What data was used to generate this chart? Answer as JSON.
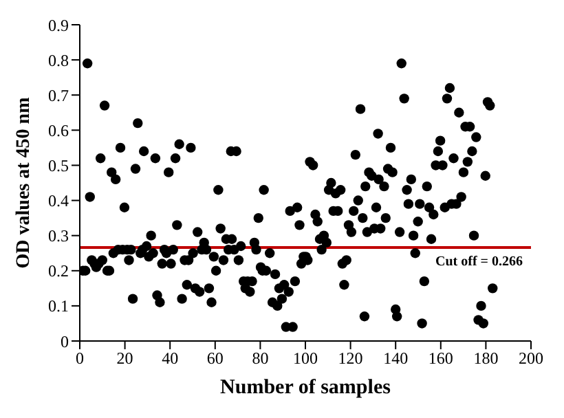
{
  "chart_data": {
    "type": "scatter",
    "xlabel": "Number of samples",
    "ylabel": "OD values at 450 nm",
    "xlim": [
      0,
      200
    ],
    "xticks": [
      0,
      20,
      40,
      60,
      80,
      100,
      120,
      140,
      160,
      180,
      200
    ],
    "ylim": [
      0,
      0.9
    ],
    "yticks": [
      0,
      0.1,
      0.2,
      0.3,
      0.4,
      0.5,
      0.6,
      0.7,
      0.8,
      0.9
    ],
    "marker": "circle",
    "ref_lines": [
      {
        "axis": "y",
        "value": 0.266,
        "label": "Cut off = 0.266",
        "color": "#c00000"
      }
    ],
    "series": [
      {
        "color": "#000000",
        "x": [
          1.4,
          2.5,
          3.4,
          4.5,
          5.3,
          6.5,
          7.3,
          8.4,
          9.2,
          10,
          11,
          12.2,
          13.1,
          14.1,
          14.9,
          15.9,
          17,
          18,
          19,
          19.8,
          21,
          21.8,
          22.7,
          23.5,
          24.7,
          25.7,
          26.9,
          27.8,
          28.4,
          29.6,
          30.6,
          31.6,
          32.5,
          33.5,
          34.3,
          35.5,
          36.5,
          37.5,
          38.4,
          39.4,
          40.4,
          41.4,
          42.4,
          43.1,
          44.1,
          45.3,
          46.5,
          47.5,
          48.2,
          49.2,
          50.2,
          51.2,
          52.2,
          53.1,
          54.1,
          55.1,
          56.1,
          57.3,
          58.4,
          59.4,
          60.4,
          61.4,
          62.4,
          63.7,
          64.9,
          65.9,
          67,
          67.4,
          68.4,
          69.4,
          70.4,
          71.4,
          72.6,
          73.4,
          74.4,
          75.4,
          76.4,
          77.4,
          78.2,
          79.2,
          80.2,
          81,
          81.6,
          82.6,
          84.2,
          85.4,
          86.6,
          87.6,
          88.4,
          89.6,
          90.6,
          91.4,
          92.6,
          93.2,
          94.4,
          95.4,
          96.4,
          97.4,
          98.2,
          99.2,
          100.2,
          101,
          102,
          103.4,
          104.4,
          105.4,
          106.4,
          107.2,
          108.2,
          109.4,
          110.4,
          111.4,
          112.4,
          113.4,
          114.4,
          115.6,
          116.4,
          117.2,
          118.2,
          119.2,
          120.4,
          121.4,
          122.2,
          123.4,
          124.4,
          125.4,
          126.2,
          126.6,
          127.4,
          128.2,
          129.4,
          130.6,
          131.4,
          132.2,
          132.5,
          133.3,
          134.9,
          135.6,
          136.6,
          137.8,
          138.6,
          140,
          140.6,
          141.8,
          142.6,
          143.8,
          145,
          145.7,
          146.9,
          147.9,
          148.7,
          149.9,
          150.7,
          151.7,
          152.7,
          153.9,
          154.9,
          155.8,
          156.8,
          157.8,
          158.8,
          159.8,
          160.8,
          161.8,
          162.8,
          164,
          164.8,
          165.7,
          166.9,
          168.1,
          169.1,
          170.1,
          170.9,
          171.9,
          172.9,
          173.9,
          174.7,
          175.7,
          176.7,
          177.9,
          178.9,
          179.8,
          180.8,
          181.8,
          183
        ],
        "values": [
          0.2,
          0.2,
          0.79,
          0.41,
          0.23,
          0.22,
          0.21,
          0.22,
          0.52,
          0.23,
          0.67,
          0.2,
          0.2,
          0.48,
          0.25,
          0.46,
          0.26,
          0.55,
          0.26,
          0.38,
          0.26,
          0.23,
          0.26,
          0.12,
          0.49,
          0.62,
          0.25,
          0.26,
          0.54,
          0.27,
          0.24,
          0.3,
          0.25,
          0.52,
          0.13,
          0.11,
          0.22,
          0.26,
          0.25,
          0.48,
          0.22,
          0.26,
          0.52,
          0.33,
          0.56,
          0.12,
          0.23,
          0.16,
          0.23,
          0.55,
          0.25,
          0.15,
          0.31,
          0.14,
          0.26,
          0.28,
          0.26,
          0.15,
          0.11,
          0.24,
          0.2,
          0.43,
          0.32,
          0.23,
          0.29,
          0.26,
          0.54,
          0.29,
          0.26,
          0.54,
          0.23,
          0.27,
          0.17,
          0.15,
          0.17,
          0.14,
          0.17,
          0.28,
          0.26,
          0.35,
          0.21,
          0.2,
          0.43,
          0.2,
          0.25,
          0.11,
          0.19,
          0.1,
          0.15,
          0.12,
          0.16,
          0.04,
          0.14,
          0.37,
          0.04,
          0.17,
          0.38,
          0.33,
          0.22,
          0.24,
          0.24,
          0.23,
          0.51,
          0.5,
          0.36,
          0.34,
          0.29,
          0.26,
          0.3,
          0.28,
          0.43,
          0.45,
          0.37,
          0.42,
          0.37,
          0.43,
          0.22,
          0.16,
          0.23,
          0.33,
          0.31,
          0.37,
          0.53,
          0.4,
          0.66,
          0.35,
          0.07,
          0.44,
          0.31,
          0.48,
          0.47,
          0.32,
          0.38,
          0.59,
          0.46,
          0.32,
          0.44,
          0.35,
          0.49,
          0.55,
          0.48,
          0.09,
          0.07,
          0.31,
          0.79,
          0.69,
          0.43,
          0.39,
          0.46,
          0.3,
          0.25,
          0.34,
          0.39,
          0.05,
          0.17,
          0.44,
          0.38,
          0.29,
          0.36,
          0.5,
          0.54,
          0.57,
          0.5,
          0.38,
          0.69,
          0.72,
          0.39,
          0.52,
          0.39,
          0.65,
          0.41,
          0.48,
          0.61,
          0.51,
          0.61,
          0.54,
          0.3,
          0.58,
          0.06,
          0.1,
          0.05,
          0.47,
          0.68,
          0.67,
          0.15
        ]
      }
    ]
  }
}
